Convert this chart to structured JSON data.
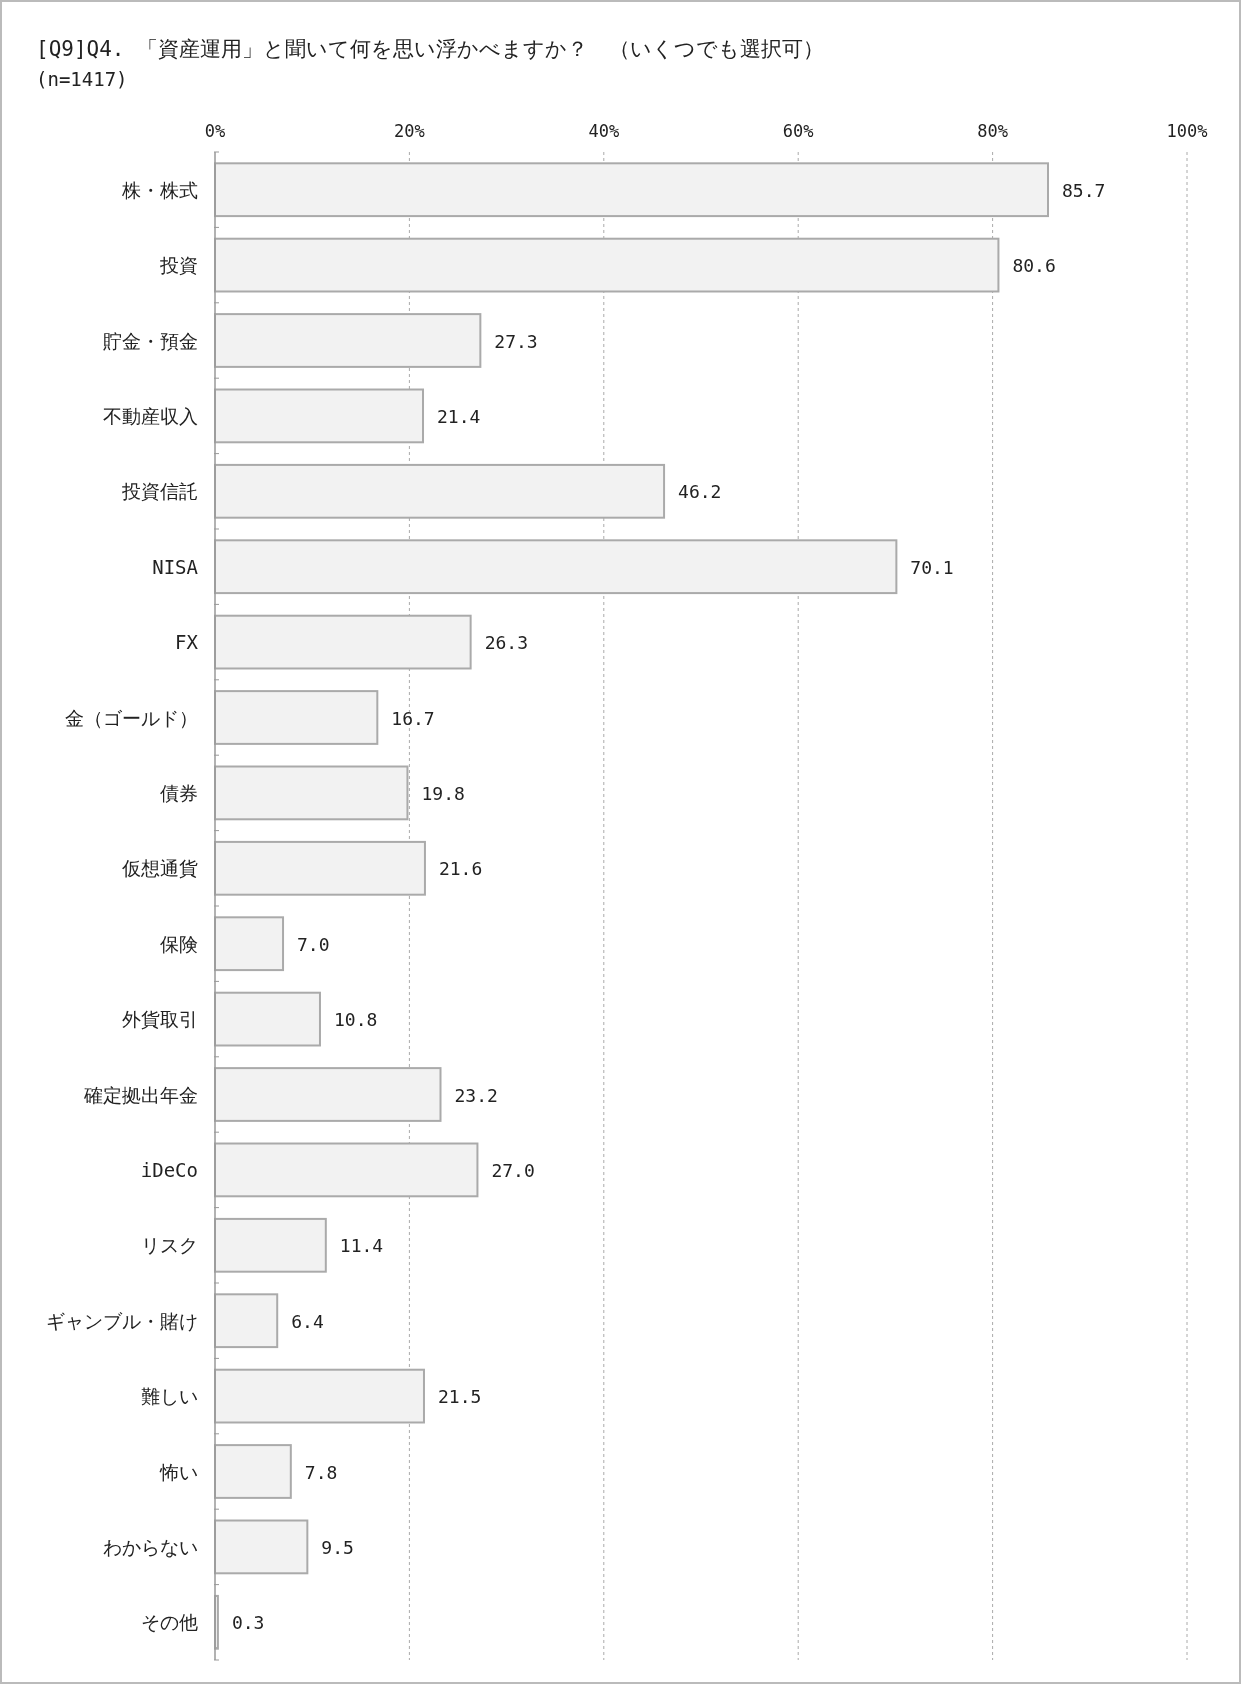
{
  "chart_data": {
    "type": "bar",
    "orientation": "horizontal",
    "title": "[Q9]Q4. 「資産運用」と聞いて何を思い浮かべますか？　（いくつでも選択可）",
    "subtitle": "(n=1417)",
    "categories": [
      "株・株式",
      "投資",
      "貯金・預金",
      "不動産収入",
      "投資信託",
      "NISA",
      "FX",
      "金（ゴールド）",
      "債券",
      "仮想通貨",
      "保険",
      "外貨取引",
      "確定拠出年金",
      "iDeCo",
      "リスク",
      "ギャンブル・賭け",
      "難しい",
      "怖い",
      "わからない",
      "その他"
    ],
    "values": [
      85.7,
      80.6,
      27.3,
      21.4,
      46.2,
      70.1,
      26.3,
      16.7,
      19.8,
      21.6,
      7.0,
      10.8,
      23.2,
      27.0,
      11.4,
      6.4,
      21.5,
      7.8,
      9.5,
      0.3
    ],
    "value_labels": [
      "85.7",
      "80.6",
      "27.3",
      "21.4",
      "46.2",
      "70.1",
      "26.3",
      "16.7",
      "19.8",
      "21.6",
      "7.0",
      "10.8",
      "23.2",
      "27.0",
      "11.4",
      "6.4",
      "21.5",
      "7.8",
      "9.5",
      "0.3"
    ],
    "color": "#f2f2f2",
    "xlim": [
      0,
      100
    ],
    "xticks": [
      {
        "value": 0,
        "label": "0%"
      },
      {
        "value": 20,
        "label": "20%"
      },
      {
        "value": 40,
        "label": "40%"
      },
      {
        "value": 60,
        "label": "60%"
      },
      {
        "value": 80,
        "label": "80%"
      },
      {
        "value": 100,
        "label": "100%"
      }
    ],
    "grid": "x"
  }
}
